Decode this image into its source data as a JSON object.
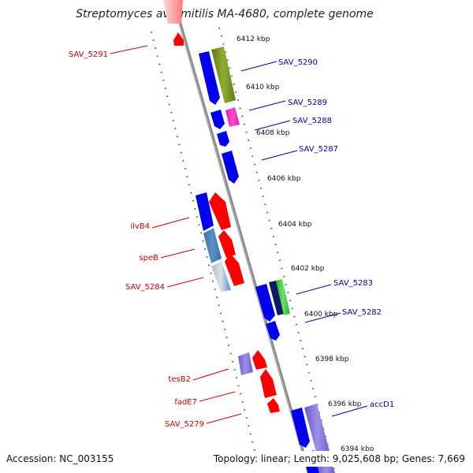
{
  "title": "Streptomyces avermitilis MA-4680, complete genome",
  "footer": {
    "accession": "Accession: NC_003155",
    "summary": "Topology: linear; Length: 9,025,608 bp; Genes: 7,669"
  },
  "position_ticks": [
    "6412 kbp",
    "6410 kbp",
    "6408 kbp",
    "6406 kbp",
    "6404 kbp",
    "6402 kbp",
    "6400 kbp",
    "6398 kbp",
    "6396 kbp",
    "6394 kbp"
  ],
  "gene_labels_left": [
    "SAV_5291",
    "ilvB4",
    "speB",
    "SAV_5284",
    "tesB2",
    "fadE7",
    "SAV_5279"
  ],
  "gene_labels_right": [
    "SAV_5290",
    "SAV_5289",
    "SAV_5288",
    "SAV_5287",
    "SAV_5283",
    "SAV_5282",
    "accD1"
  ],
  "colors": {
    "forward_strand": "#ff0000",
    "reverse_strand": "#0000ee",
    "backbone": "#888888",
    "dotted_guides": "#1a7a1a",
    "label_left": "#cc0000",
    "label_right": "#0000aa"
  }
}
